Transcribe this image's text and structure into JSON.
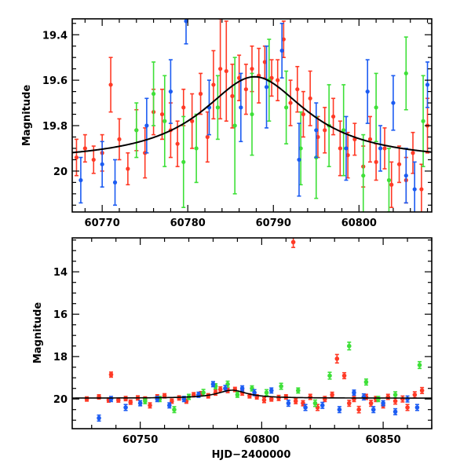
{
  "chart_data": [
    {
      "type": "scatter",
      "panel": "zoom",
      "xlim": [
        60766.5,
        60808.5
      ],
      "ylim": [
        20.18,
        19.33
      ],
      "y_inverted": true,
      "xticks": [
        60770,
        60780,
        60790,
        60800
      ],
      "yticks": [
        19.4,
        19.6,
        19.8,
        20
      ],
      "ytick_labels": [
        "19.4",
        "19.6",
        "19.8",
        "20"
      ],
      "xlabel": "",
      "ylabel": "Magnitude",
      "model": {
        "type": "line",
        "color": "#000000",
        "peak_x": 60787.8,
        "peak_mag": 19.585,
        "baseline_mag": 19.96,
        "width_days": 7.5
      },
      "series": [
        {
          "color": "#ff3a26",
          "points": [
            [
              60767.0,
              19.94,
              0.08
            ],
            [
              60768.0,
              19.9,
              0.06
            ],
            [
              60769.0,
              19.95,
              0.06
            ],
            [
              60770.0,
              19.92,
              0.08
            ],
            [
              60771.0,
              19.62,
              0.12
            ],
            [
              60772.0,
              19.86,
              0.09
            ],
            [
              60773.0,
              19.99,
              0.07
            ],
            [
              60774.0,
              19.82,
              0.09
            ],
            [
              60775.0,
              19.92,
              0.11
            ],
            [
              60776.0,
              19.74,
              0.1
            ],
            [
              60777.0,
              19.75,
              0.11
            ],
            [
              60778.0,
              19.82,
              0.12
            ],
            [
              60778.8,
              19.88,
              0.1
            ],
            [
              60779.5,
              19.72,
              0.08
            ],
            [
              60780.5,
              19.78,
              0.12
            ],
            [
              60781.5,
              19.66,
              0.09
            ],
            [
              60782.3,
              19.85,
              0.11
            ],
            [
              60783.0,
              19.62,
              0.15
            ],
            [
              60783.8,
              19.55,
              0.22
            ],
            [
              60784.5,
              19.56,
              0.22
            ],
            [
              60785.2,
              19.67,
              0.14
            ],
            [
              60786.0,
              19.59,
              0.1
            ],
            [
              60786.8,
              19.64,
              0.11
            ],
            [
              60787.5,
              19.55,
              0.1
            ],
            [
              60788.3,
              19.58,
              0.12
            ],
            [
              60789.0,
              19.52,
              0.07
            ],
            [
              60789.8,
              19.59,
              0.08
            ],
            [
              60790.5,
              19.6,
              0.09
            ],
            [
              60791.2,
              19.42,
              0.08
            ],
            [
              60792.0,
              19.7,
              0.1
            ],
            [
              60792.8,
              19.64,
              0.1
            ],
            [
              60793.5,
              19.75,
              0.1
            ],
            [
              60794.3,
              19.68,
              0.12
            ],
            [
              60795.2,
              19.85,
              0.09
            ],
            [
              60796.0,
              19.82,
              0.1
            ],
            [
              60797.0,
              19.76,
              0.08
            ],
            [
              60797.8,
              19.9,
              0.12
            ],
            [
              60798.7,
              19.93,
              0.1
            ],
            [
              60799.5,
              19.86,
              0.07
            ],
            [
              60800.5,
              19.98,
              0.09
            ],
            [
              60801.3,
              19.86,
              0.1
            ],
            [
              60802.0,
              19.96,
              0.08
            ],
            [
              60803.0,
              19.9,
              0.09
            ],
            [
              60803.8,
              20.06,
              0.1
            ],
            [
              60804.7,
              19.97,
              0.08
            ],
            [
              60805.5,
              20.04,
              0.1
            ],
            [
              60806.3,
              19.92,
              0.09
            ],
            [
              60807.3,
              20.08,
              0.11
            ],
            [
              60808.0,
              19.8,
              0.12
            ]
          ]
        },
        {
          "color": "#3ee038",
          "points": [
            [
              60774.0,
              19.82,
              0.12
            ],
            [
              60776.0,
              19.66,
              0.14
            ],
            [
              60777.3,
              19.78,
              0.2
            ],
            [
              60779.5,
              19.96,
              0.2
            ],
            [
              60781.0,
              19.9,
              0.15
            ],
            [
              60783.5,
              19.72,
              0.14
            ],
            [
              60785.5,
              19.8,
              0.3
            ],
            [
              60787.5,
              19.75,
              0.18
            ],
            [
              60789.5,
              19.6,
              0.18
            ],
            [
              60791.5,
              19.72,
              0.16
            ],
            [
              60793.2,
              19.9,
              0.16
            ],
            [
              60795.0,
              19.94,
              0.18
            ],
            [
              60796.5,
              19.8,
              0.18
            ],
            [
              60798.2,
              19.82,
              0.2
            ],
            [
              60800.5,
              20.02,
              0.18
            ],
            [
              60802.0,
              19.72,
              0.15
            ],
            [
              60803.5,
              20.04,
              0.14
            ],
            [
              60805.5,
              19.57,
              0.16
            ],
            [
              60807.5,
              19.78,
              0.2
            ]
          ]
        },
        {
          "color": "#1c5cf2",
          "points": [
            [
              60767.5,
              20.04,
              0.1
            ],
            [
              60770.0,
              19.97,
              0.1
            ],
            [
              60771.5,
              20.05,
              0.1
            ],
            [
              60775.2,
              19.8,
              0.12
            ],
            [
              60778.0,
              19.65,
              0.14
            ],
            [
              60779.8,
              19.34,
              0.1
            ],
            [
              60782.5,
              19.72,
              0.12
            ],
            [
              60786.2,
              19.72,
              0.15
            ],
            [
              60789.2,
              19.63,
              0.18
            ],
            [
              60791.0,
              19.47,
              0.12
            ],
            [
              60793.0,
              19.95,
              0.16
            ],
            [
              60795.0,
              19.82,
              0.12
            ],
            [
              60798.5,
              19.9,
              0.14
            ],
            [
              60801.0,
              19.65,
              0.14
            ],
            [
              60802.5,
              19.9,
              0.1
            ],
            [
              60804.0,
              19.7,
              0.12
            ],
            [
              60805.5,
              20.02,
              0.12
            ],
            [
              60806.5,
              20.08,
              0.12
            ],
            [
              60808.0,
              19.62,
              0.1
            ]
          ]
        }
      ]
    },
    {
      "type": "scatter",
      "panel": "full",
      "xlim": [
        60722,
        60870
      ],
      "ylim": [
        21.4,
        12.4
      ],
      "y_inverted": true,
      "xticks": [
        60750,
        60800,
        60850
      ],
      "yticks": [
        14,
        16,
        18,
        20
      ],
      "ytick_labels": [
        "14",
        "16",
        "18",
        "20"
      ],
      "xlabel": "HJD−2400000",
      "ylabel": "Magnitude",
      "model": {
        "type": "line",
        "color": "#000000",
        "peak_x": 60787.8,
        "peak_mag": 19.585,
        "baseline_mag": 19.96,
        "width_days": 7.5
      },
      "series": [
        {
          "color": "#ff3a26",
          "points": [
            [
              60728,
              20.0,
              0.1
            ],
            [
              60733,
              19.9,
              0.1
            ],
            [
              60737,
              20.05,
              0.1
            ],
            [
              60738,
              18.85,
              0.12
            ],
            [
              60741,
              20.05,
              0.1
            ],
            [
              60744,
              19.98,
              0.1
            ],
            [
              60746,
              20.15,
              0.1
            ],
            [
              60749,
              19.95,
              0.1
            ],
            [
              60752,
              20.0,
              0.1
            ],
            [
              60754,
              20.3,
              0.12
            ],
            [
              60757,
              19.9,
              0.1
            ],
            [
              60760,
              19.85,
              0.1
            ],
            [
              60763,
              20.1,
              0.1
            ],
            [
              60766,
              19.95,
              0.1
            ],
            [
              60769,
              20.1,
              0.1
            ],
            [
              60772,
              19.8,
              0.1
            ],
            [
              60775,
              19.75,
              0.1
            ],
            [
              60778,
              19.85,
              0.1
            ],
            [
              60781,
              19.7,
              0.12
            ],
            [
              60783,
              19.55,
              0.12
            ],
            [
              60786,
              19.6,
              0.1
            ],
            [
              60789,
              19.55,
              0.1
            ],
            [
              60792,
              19.7,
              0.12
            ],
            [
              60795,
              19.85,
              0.1
            ],
            [
              60798,
              19.9,
              0.1
            ],
            [
              60801,
              20.05,
              0.12
            ],
            [
              60804,
              20.0,
              0.1
            ],
            [
              60807,
              19.95,
              0.12
            ],
            [
              60810,
              19.9,
              0.1
            ],
            [
              60813,
              12.6,
              0.25
            ],
            [
              60814,
              20.1,
              0.12
            ],
            [
              60817,
              20.2,
              0.12
            ],
            [
              60820,
              19.9,
              0.12
            ],
            [
              60823,
              20.4,
              0.14
            ],
            [
              60826,
              20.0,
              0.12
            ],
            [
              60829,
              19.8,
              0.12
            ],
            [
              60831,
              18.1,
              0.2
            ],
            [
              60834,
              18.9,
              0.14
            ],
            [
              60836,
              20.2,
              0.14
            ],
            [
              60838,
              20.0,
              0.12
            ],
            [
              60840,
              20.5,
              0.15
            ],
            [
              60843,
              19.9,
              0.12
            ],
            [
              60845,
              20.2,
              0.14
            ],
            [
              60847,
              20.0,
              0.12
            ],
            [
              60850,
              20.3,
              0.12
            ],
            [
              60852,
              19.9,
              0.12
            ],
            [
              60855,
              20.1,
              0.14
            ],
            [
              60858,
              20.0,
              0.14
            ],
            [
              60860,
              20.4,
              0.14
            ],
            [
              60863,
              19.8,
              0.14
            ],
            [
              60866,
              19.6,
              0.14
            ]
          ]
        },
        {
          "color": "#3ee038",
          "points": [
            [
              60752,
              20.1,
              0.12
            ],
            [
              60758,
              20.0,
              0.12
            ],
            [
              60764,
              20.5,
              0.14
            ],
            [
              60770,
              19.9,
              0.12
            ],
            [
              60776,
              19.7,
              0.15
            ],
            [
              60781,
              19.4,
              0.12
            ],
            [
              60786,
              19.3,
              0.14
            ],
            [
              60790,
              19.8,
              0.12
            ],
            [
              60796,
              19.5,
              0.12
            ],
            [
              60802,
              19.7,
              0.14
            ],
            [
              60808,
              19.4,
              0.14
            ],
            [
              60815,
              19.6,
              0.12
            ],
            [
              60822,
              20.2,
              0.15
            ],
            [
              60828,
              18.9,
              0.16
            ],
            [
              60836,
              17.5,
              0.18
            ],
            [
              60843,
              19.2,
              0.14
            ],
            [
              60848,
              20.0,
              0.12
            ],
            [
              60855,
              19.8,
              0.14
            ],
            [
              60865,
              18.4,
              0.16
            ]
          ]
        },
        {
          "color": "#1c5cf2",
          "points": [
            [
              60733,
              20.9,
              0.14
            ],
            [
              60738,
              20.0,
              0.12
            ],
            [
              60744,
              20.4,
              0.14
            ],
            [
              60750,
              20.2,
              0.12
            ],
            [
              60757,
              20.0,
              0.12
            ],
            [
              60762,
              20.3,
              0.12
            ],
            [
              60768,
              20.0,
              0.12
            ],
            [
              60774,
              19.8,
              0.12
            ],
            [
              60780,
              19.3,
              0.12
            ],
            [
              60785,
              19.5,
              0.14
            ],
            [
              60792,
              19.5,
              0.12
            ],
            [
              60797,
              19.7,
              0.14
            ],
            [
              60804,
              19.6,
              0.12
            ],
            [
              60811,
              20.2,
              0.14
            ],
            [
              60818,
              20.4,
              0.14
            ],
            [
              60825,
              20.3,
              0.14
            ],
            [
              60832,
              20.5,
              0.14
            ],
            [
              60838,
              19.7,
              0.12
            ],
            [
              60842,
              19.9,
              0.14
            ],
            [
              60846,
              20.5,
              0.14
            ],
            [
              60850,
              20.2,
              0.12
            ],
            [
              60855,
              20.6,
              0.14
            ],
            [
              60860,
              20.0,
              0.14
            ],
            [
              60864,
              20.4,
              0.14
            ]
          ]
        }
      ]
    }
  ]
}
